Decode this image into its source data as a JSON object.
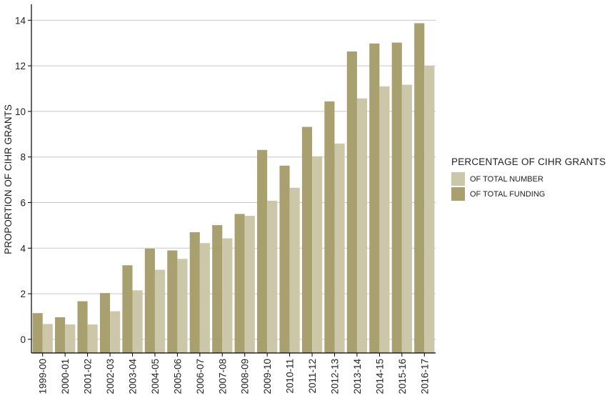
{
  "chart_data": {
    "type": "bar",
    "categories": [
      "1999-00",
      "2000-01",
      "2001-02",
      "2002-03",
      "2003-04",
      "2004-05",
      "2005-06",
      "2006-07",
      "2007-08",
      "2008-09",
      "2009-10",
      "2010-11",
      "2011-12",
      "2012-13",
      "2013-14",
      "2014-15",
      "2015-16",
      "2016-17"
    ],
    "series": [
      {
        "name": "OF TOTAL FUNDING",
        "color": "#a9a070",
        "values": [
          1.15,
          0.97,
          1.67,
          2.03,
          3.25,
          3.98,
          3.9,
          4.7,
          5.01,
          5.5,
          8.31,
          7.62,
          9.32,
          10.44,
          12.63,
          12.98,
          13.02,
          13.87
        ]
      },
      {
        "name": "OF TOTAL NUMBER",
        "color": "#cdc7a9",
        "values": [
          0.67,
          0.65,
          0.65,
          1.23,
          2.15,
          3.05,
          3.53,
          4.22,
          4.43,
          5.42,
          6.08,
          6.65,
          8.03,
          8.59,
          10.57,
          11.1,
          11.17,
          11.99
        ]
      }
    ],
    "ylabel": "PROPORTION OF CIHR GRANTS",
    "xlabel": "",
    "ylim": [
      -0.6,
      14.7
    ],
    "yticks": [
      0,
      2,
      4,
      6,
      8,
      10,
      12,
      14
    ],
    "grid": "horizontal",
    "legend": {
      "title": "PERCENTAGE OF CIHR GRANTS",
      "placement": "right",
      "entries": [
        {
          "label": "OF TOTAL NUMBER",
          "color": "#cdc7a9"
        },
        {
          "label": "OF TOTAL FUNDING",
          "color": "#a9a070"
        }
      ]
    }
  }
}
